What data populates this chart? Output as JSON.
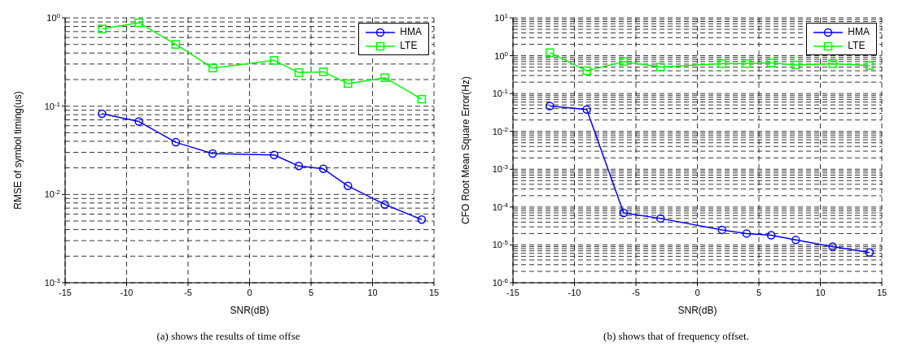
{
  "chart_data": [
    {
      "type": "line",
      "xlabel": "SNR(dB)",
      "ylabel": "RMSE of symbol timing(us)",
      "x": [
        -12,
        -9,
        -6,
        -3,
        2,
        4,
        6,
        8,
        11,
        14
      ],
      "series": [
        {
          "name": "HMA",
          "color": "#0000ff",
          "marker": "circle",
          "values": [
            0.082,
            0.067,
            0.039,
            0.029,
            0.028,
            0.021,
            0.0195,
            0.0125,
            0.0077,
            0.0052
          ]
        },
        {
          "name": "LTE",
          "color": "#00ff00",
          "marker": "square",
          "values": [
            0.75,
            0.88,
            0.5,
            0.27,
            0.33,
            0.24,
            0.245,
            0.18,
            0.21,
            0.12
          ]
        }
      ],
      "xlim": [
        -15,
        15
      ],
      "xticks": [
        -15,
        -10,
        -5,
        0,
        5,
        10,
        15
      ],
      "log": "y",
      "ylim": [
        0.001,
        1
      ],
      "yticks": [
        {
          "value": 0.001,
          "label": "10$^{-3}$"
        },
        {
          "value": 0.01,
          "label": "10$^{-2}$"
        },
        {
          "value": 0.1,
          "label": "10$^{-1}$"
        },
        {
          "value": 1,
          "label": "10$^{0}$"
        }
      ],
      "grid": true,
      "legend": "top right",
      "line_style": "solid",
      "annotations": [
        "(a) shows the results of time offse"
      ]
    },
    {
      "type": "line",
      "xlabel": "SNR(dB)",
      "ylabel": "CFO Root Mean Square Error(Hz)",
      "x": [
        -12,
        -9,
        -6,
        -3,
        2,
        4,
        6,
        8,
        11,
        14
      ],
      "series": [
        {
          "name": "HMA",
          "color": "#0000ff",
          "marker": "circle",
          "values": [
            0.047,
            0.038,
            7e-05,
            5e-05,
            2.5e-05,
            2e-05,
            1.8e-05,
            1.35e-05,
            9e-06,
            6.3e-06
          ]
        },
        {
          "name": "LTE",
          "color": "#00ff00",
          "marker": "square",
          "values": [
            1.2,
            0.4,
            0.7,
            0.5,
            0.62,
            0.62,
            0.65,
            0.57,
            0.62,
            0.55
          ]
        }
      ],
      "xlim": [
        -15,
        15
      ],
      "xticks": [
        -15,
        -10,
        -5,
        0,
        5,
        10,
        15
      ],
      "log": "y",
      "ylim": [
        1e-06,
        10
      ],
      "yticks": [
        {
          "value": 1e-06,
          "label": "10$^{-6}$"
        },
        {
          "value": 1e-05,
          "label": "10$^{-5}$"
        },
        {
          "value": 0.0001,
          "label": "10$^{-4}$"
        },
        {
          "value": 0.001,
          "label": "10$^{-3}$"
        },
        {
          "value": 0.01,
          "label": "10$^{-2}$"
        },
        {
          "value": 0.1,
          "label": "10$^{-1}$"
        },
        {
          "value": 1,
          "label": "10$^{0}$"
        },
        {
          "value": 10,
          "label": "10$^{1}$"
        }
      ],
      "grid": true,
      "legend": "top right",
      "line_style": "solid",
      "annotations": [
        "(b) shows that of frequency offset."
      ]
    }
  ]
}
